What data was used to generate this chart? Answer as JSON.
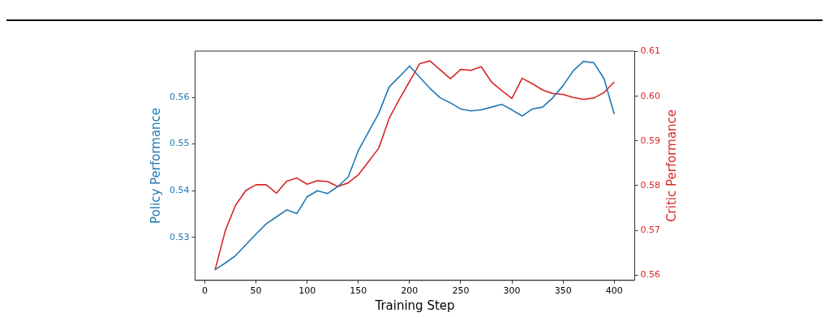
{
  "chart_data": {
    "type": "line",
    "xlabel": "Training Step",
    "ylabel": "Policy Performance",
    "y2label": "Critic Performance",
    "x": [
      10,
      20,
      30,
      40,
      50,
      60,
      70,
      80,
      90,
      100,
      110,
      120,
      130,
      140,
      150,
      160,
      170,
      180,
      190,
      200,
      210,
      220,
      230,
      240,
      250,
      260,
      270,
      280,
      290,
      300,
      310,
      320,
      330,
      340,
      350,
      360,
      370,
      380,
      390,
      400
    ],
    "series": [
      {
        "name": null,
        "color": "#1f77b4",
        "values": [
          0.5231,
          0.5245,
          0.5261,
          0.5284,
          0.5307,
          0.5329,
          0.5344,
          0.5359,
          0.5351,
          0.5387,
          0.54,
          0.5394,
          0.5409,
          0.5429,
          0.5486,
          0.5526,
          0.5566,
          0.5622,
          0.5644,
          0.5667,
          0.5643,
          0.5619,
          0.5599,
          0.5588,
          0.5575,
          0.5571,
          0.5573,
          0.5579,
          0.5585,
          0.5573,
          0.556,
          0.5575,
          0.5579,
          0.5599,
          0.5625,
          0.5657,
          0.5677,
          0.5674,
          0.564,
          0.5564
        ]
      },
      {
        "name": null,
        "color": "#d62728",
        "axis": "y2",
        "values": [
          0.5611,
          0.5699,
          0.5756,
          0.5789,
          0.5802,
          0.5802,
          0.5783,
          0.581,
          0.5817,
          0.5803,
          0.5811,
          0.5809,
          0.5798,
          0.5806,
          0.5824,
          0.5854,
          0.5884,
          0.595,
          0.5993,
          0.6033,
          0.6073,
          0.6079,
          0.6059,
          0.6039,
          0.606,
          0.6058,
          0.6066,
          0.6032,
          0.6013,
          0.5995,
          0.604,
          0.6028,
          0.6014,
          0.6006,
          0.6004,
          0.5997,
          0.5993,
          0.5996,
          0.6008,
          0.6032
        ]
      }
    ],
    "xlim": [
      -9.5,
      420
    ],
    "xticks": [
      0,
      50,
      100,
      150,
      200,
      250,
      300,
      350,
      400
    ],
    "ylim": [
      0.5208,
      0.5699
    ],
    "yticks": [
      0.53,
      0.54,
      0.55,
      0.56
    ],
    "y2lim": [
      0.5588,
      0.6101
    ],
    "y2ticks": [
      0.56,
      0.57,
      0.58,
      0.59,
      {
        "value": 0.6,
        "label": "0.60"
      },
      0.61
    ],
    "grid": false,
    "legend": false,
    "marker": "none",
    "line_style": "solid"
  }
}
